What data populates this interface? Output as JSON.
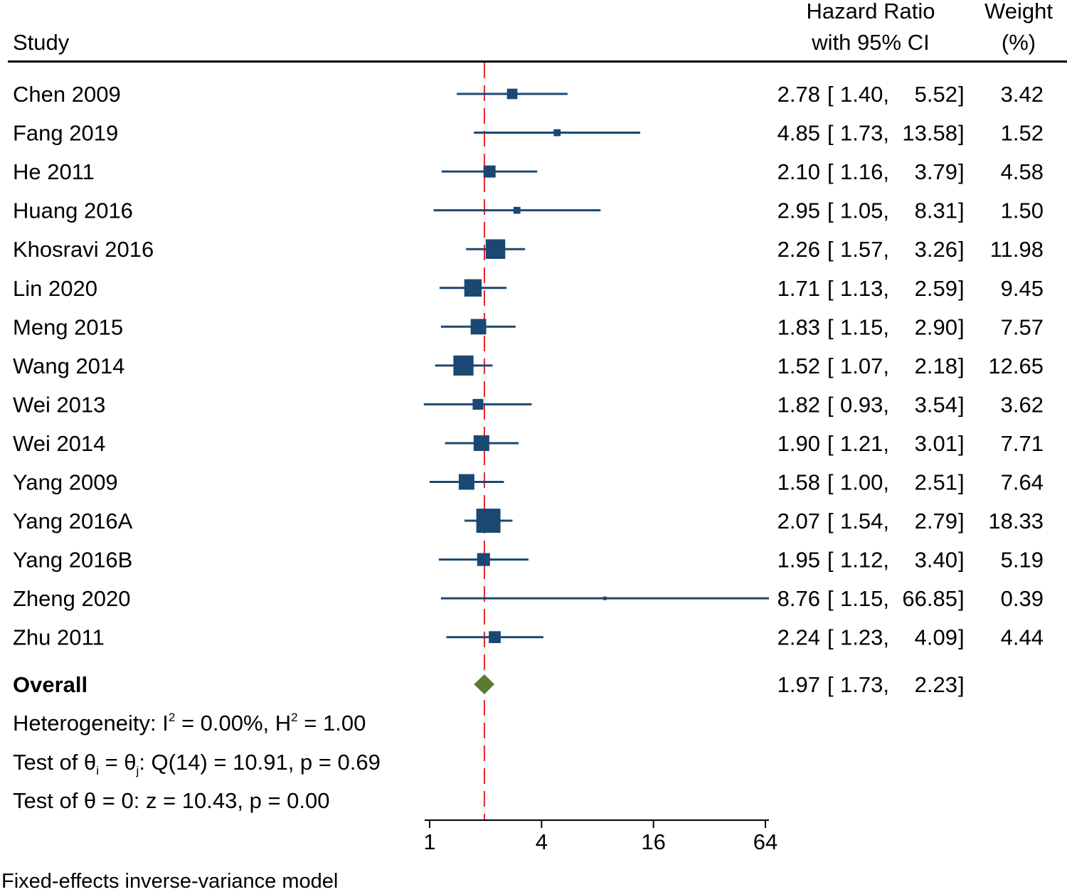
{
  "chart_data": {
    "type": "forest",
    "headers": {
      "study": "Study",
      "hr_line1": "Hazard Ratio",
      "hr_line2": "with 95% CI",
      "weight_line1": "Weight",
      "weight_line2": "(%)"
    },
    "x_scale": "log2",
    "xlim": [
      1,
      64
    ],
    "xticks": [
      1,
      4,
      16,
      64
    ],
    "xtick_labels": [
      "1",
      "4",
      "16",
      "64"
    ],
    "reference_line": 1.97,
    "colors": {
      "study_marker": "#1b4872",
      "overall_marker": "#587a32",
      "reference_line": "#e8262a",
      "text": "#000000"
    },
    "studies": [
      {
        "name": "Chen 2009",
        "hr": 2.78,
        "lo": 1.4,
        "hi": 5.52,
        "hr_text": "2.78",
        "lo_text": "1.40",
        "hi_text": "5.52",
        "weight": "3.42"
      },
      {
        "name": "Fang 2019",
        "hr": 4.85,
        "lo": 1.73,
        "hi": 13.58,
        "hr_text": "4.85",
        "lo_text": "1.73",
        "hi_text": "13.58",
        "weight": "1.52"
      },
      {
        "name": "He 2011",
        "hr": 2.1,
        "lo": 1.16,
        "hi": 3.79,
        "hr_text": "2.10",
        "lo_text": "1.16",
        "hi_text": "3.79",
        "weight": "4.58"
      },
      {
        "name": "Huang 2016",
        "hr": 2.95,
        "lo": 1.05,
        "hi": 8.31,
        "hr_text": "2.95",
        "lo_text": "1.05",
        "hi_text": "8.31",
        "weight": "1.50"
      },
      {
        "name": "Khosravi 2016",
        "hr": 2.26,
        "lo": 1.57,
        "hi": 3.26,
        "hr_text": "2.26",
        "lo_text": "1.57",
        "hi_text": "3.26",
        "weight": "11.98"
      },
      {
        "name": "Lin 2020",
        "hr": 1.71,
        "lo": 1.13,
        "hi": 2.59,
        "hr_text": "1.71",
        "lo_text": "1.13",
        "hi_text": "2.59",
        "weight": "9.45"
      },
      {
        "name": "Meng 2015",
        "hr": 1.83,
        "lo": 1.15,
        "hi": 2.9,
        "hr_text": "1.83",
        "lo_text": "1.15",
        "hi_text": "2.90",
        "weight": "7.57"
      },
      {
        "name": "Wang 2014",
        "hr": 1.52,
        "lo": 1.07,
        "hi": 2.18,
        "hr_text": "1.52",
        "lo_text": "1.07",
        "hi_text": "2.18",
        "weight": "12.65"
      },
      {
        "name": "Wei 2013",
        "hr": 1.82,
        "lo": 0.93,
        "hi": 3.54,
        "hr_text": "1.82",
        "lo_text": "0.93",
        "hi_text": "3.54",
        "weight": "3.62"
      },
      {
        "name": "Wei 2014",
        "hr": 1.9,
        "lo": 1.21,
        "hi": 3.01,
        "hr_text": "1.90",
        "lo_text": "1.21",
        "hi_text": "3.01",
        "weight": "7.71"
      },
      {
        "name": "Yang 2009",
        "hr": 1.58,
        "lo": 1.0,
        "hi": 2.51,
        "hr_text": "1.58",
        "lo_text": "1.00",
        "hi_text": "2.51",
        "weight": "7.64"
      },
      {
        "name": "Yang 2016A",
        "hr": 2.07,
        "lo": 1.54,
        "hi": 2.79,
        "hr_text": "2.07",
        "lo_text": "1.54",
        "hi_text": "2.79",
        "weight": "18.33"
      },
      {
        "name": "Yang 2016B",
        "hr": 1.95,
        "lo": 1.12,
        "hi": 3.4,
        "hr_text": "1.95",
        "lo_text": "1.12",
        "hi_text": "3.40",
        "weight": "5.19"
      },
      {
        "name": "Zheng 2020",
        "hr": 8.76,
        "lo": 1.15,
        "hi": 66.85,
        "hr_text": "8.76",
        "lo_text": "1.15",
        "hi_text": "66.85",
        "weight": "0.39"
      },
      {
        "name": "Zhu 2011",
        "hr": 2.24,
        "lo": 1.23,
        "hi": 4.09,
        "hr_text": "2.24",
        "lo_text": "1.23",
        "hi_text": "4.09",
        "weight": "4.44"
      }
    ],
    "overall": {
      "name": "Overall",
      "hr": 1.97,
      "lo": 1.73,
      "hi": 2.23,
      "hr_text": "1.97",
      "lo_text": "1.73",
      "hi_text": "2.23"
    },
    "stats": {
      "heterogeneity": {
        "prefix": "Heterogeneity: I",
        "sup1": "2",
        "mid": " = 0.00%, H",
        "sup2": "2",
        "suffix": " = 1.00"
      },
      "test_ij": {
        "prefix": "Test of θ",
        "sub1": "i",
        "mid": " = θ",
        "sub2": "j",
        "suffix": ": Q(14) = 10.91, p = 0.69"
      },
      "test_zero": "Test of θ = 0: z = 10.43, p = 0.00"
    },
    "note": "Fixed-effects inverse-variance model"
  }
}
